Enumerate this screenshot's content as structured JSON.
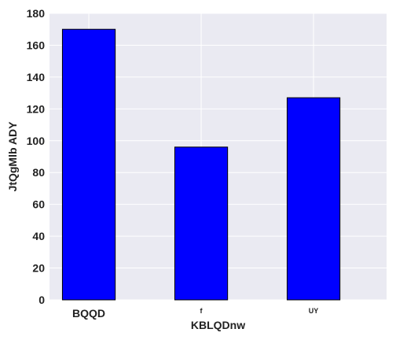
{
  "chart_data": {
    "type": "bar",
    "categories": [
      "BQQD",
      "f",
      "UY"
    ],
    "values": [
      170,
      96,
      127
    ],
    "xlabel": "KBLQDnw",
    "ylabel": "JtQgMlb ADY",
    "ylim": [
      0,
      180
    ],
    "yticks": [
      0,
      20,
      40,
      60,
      80,
      100,
      120,
      140,
      160,
      180
    ],
    "grid": true,
    "colors": {
      "bar_fill": "#0000ff",
      "bar_edge": "#000000",
      "plot_background": "#eaeaf2",
      "grid": "#ffffff"
    }
  }
}
